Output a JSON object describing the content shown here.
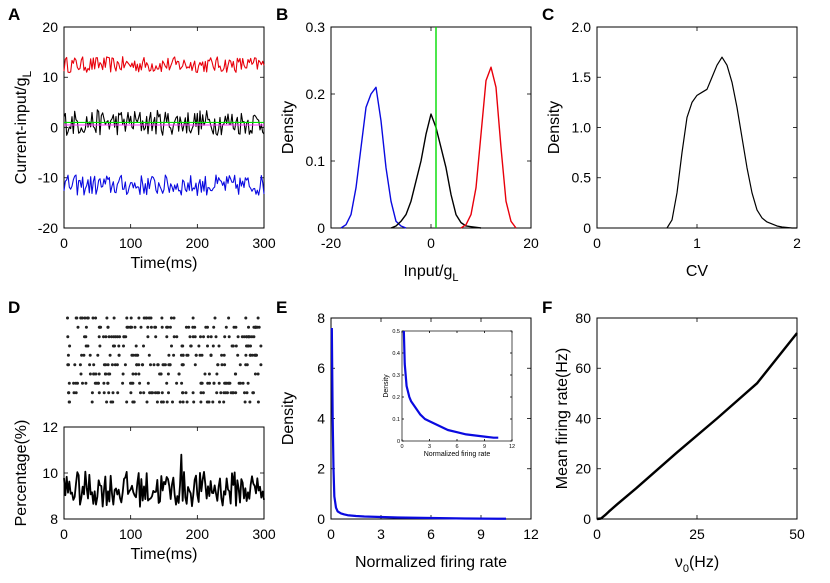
{
  "panel_labels": [
    "A",
    "B",
    "C",
    "D",
    "E",
    "F"
  ],
  "chart_data": [
    {
      "id": "A",
      "type": "line",
      "title": "",
      "xlabel": "Time(ms)",
      "ylabel": "Current-input/g",
      "ylabel_sub": "L",
      "xlim": [
        0,
        300
      ],
      "ylim": [
        -20,
        20
      ],
      "xticks": [
        "0",
        "100",
        "200",
        "300"
      ],
      "yticks": [
        "20",
        "10",
        "0",
        "-10",
        "-20"
      ],
      "xtick_values": [
        0,
        100,
        200,
        300
      ],
      "ytick_values": [
        20,
        10,
        0,
        -10,
        -20
      ],
      "series": [
        {
          "name": "high",
          "color": "#e8000b",
          "mean": 12.5,
          "amp": 1.0
        },
        {
          "name": "mid",
          "color": "#000000",
          "mean": 1.0,
          "amp": 1.6
        },
        {
          "name": "low",
          "color": "#0a0ae0",
          "mean": -11.5,
          "amp": 1.3
        },
        {
          "name": "mean-green",
          "color": "#00dd00",
          "const": 1.0
        },
        {
          "name": "mean-magenta",
          "color": "#ff33ff",
          "const": 0.5
        }
      ]
    },
    {
      "id": "B",
      "type": "line",
      "xlabel": "Input/g",
      "xlabel_sub": "L",
      "ylabel": "Density",
      "xlim": [
        -20,
        20
      ],
      "ylim": [
        0,
        0.3
      ],
      "xticks": [
        "-20",
        "0",
        "20"
      ],
      "yticks": [
        "0.3",
        "0.2",
        "0.1",
        "0"
      ],
      "xtick_values": [
        -20,
        0,
        20
      ],
      "ytick_values": [
        0.3,
        0.2,
        0.1,
        0
      ],
      "series": [
        {
          "name": "blue",
          "color": "#0a0ae0",
          "x": [
            -18,
            -17,
            -16,
            -15,
            -14,
            -13,
            -12,
            -11,
            -10,
            -9,
            -8,
            -7,
            -6,
            -5
          ],
          "y": [
            0,
            0.005,
            0.02,
            0.06,
            0.12,
            0.18,
            0.2,
            0.21,
            0.16,
            0.09,
            0.04,
            0.01,
            0.003,
            0
          ]
        },
        {
          "name": "black",
          "color": "#000000",
          "x": [
            -8,
            -7,
            -6,
            -5,
            -4,
            -3,
            -2,
            -1,
            0,
            1,
            2,
            3,
            4,
            5,
            6,
            7,
            8,
            9,
            10
          ],
          "y": [
            0,
            0.003,
            0.01,
            0.02,
            0.04,
            0.07,
            0.1,
            0.14,
            0.17,
            0.15,
            0.12,
            0.09,
            0.05,
            0.02,
            0.008,
            0.003,
            0.002,
            0.001,
            0
          ]
        },
        {
          "name": "red",
          "color": "#e8000b",
          "x": [
            6,
            7,
            8,
            9,
            10,
            11,
            12,
            13,
            14,
            15,
            16,
            17
          ],
          "y": [
            0,
            0.005,
            0.02,
            0.06,
            0.14,
            0.22,
            0.24,
            0.21,
            0.12,
            0.04,
            0.01,
            0
          ]
        },
        {
          "name": "threshold",
          "color": "#00dd00",
          "x": [
            1,
            1
          ],
          "y": [
            0,
            0.3
          ]
        }
      ]
    },
    {
      "id": "C",
      "type": "line",
      "xlabel": "CV",
      "ylabel": "Density",
      "xlim": [
        0,
        2
      ],
      "ylim": [
        0,
        2.0
      ],
      "xticks": [
        "0",
        "1",
        "2"
      ],
      "yticks": [
        "2.0",
        "1.5",
        "1.0",
        "0.5",
        "0"
      ],
      "xtick_values": [
        0,
        1,
        2
      ],
      "ytick_values": [
        2.0,
        1.5,
        1.0,
        0.5,
        0
      ],
      "series": [
        {
          "name": "cv",
          "color": "#000000",
          "x": [
            0.7,
            0.75,
            0.8,
            0.85,
            0.9,
            0.95,
            1.0,
            1.05,
            1.1,
            1.15,
            1.2,
            1.25,
            1.3,
            1.35,
            1.4,
            1.45,
            1.5,
            1.55,
            1.6,
            1.65,
            1.7,
            1.75,
            1.8,
            1.85,
            1.9,
            1.95,
            2.0
          ],
          "y": [
            0,
            0.08,
            0.35,
            0.75,
            1.1,
            1.25,
            1.32,
            1.35,
            1.38,
            1.5,
            1.62,
            1.7,
            1.62,
            1.45,
            1.2,
            0.9,
            0.6,
            0.35,
            0.18,
            0.1,
            0.06,
            0.04,
            0.02,
            0.01,
            0.005,
            0,
            0
          ]
        }
      ]
    },
    {
      "id": "D-raster",
      "type": "scatter",
      "xlim": [
        0,
        300
      ],
      "rows": 10,
      "points_per_row": 40
    },
    {
      "id": "D",
      "type": "line",
      "xlabel": "Time(ms)",
      "ylabel": "Percentage(%)",
      "xlim": [
        0,
        300
      ],
      "ylim": [
        8,
        12
      ],
      "xticks": [
        "0",
        "100",
        "200",
        "300"
      ],
      "yticks": [
        "12",
        "10",
        "8"
      ],
      "xtick_values": [
        0,
        100,
        200,
        300
      ],
      "ytick_values": [
        12,
        10,
        8
      ],
      "series": [
        {
          "name": "percentage",
          "color": "#000000",
          "mean": 9.3,
          "amp": 0.55
        }
      ]
    },
    {
      "id": "E",
      "type": "line",
      "xlabel": "Normalized firing rate",
      "ylabel": "Density",
      "xlim": [
        0,
        12
      ],
      "ylim": [
        0,
        8
      ],
      "xticks": [
        "0",
        "3",
        "6",
        "9",
        "12"
      ],
      "yticks": [
        "8",
        "6",
        "4",
        "2",
        "0"
      ],
      "xtick_values": [
        0,
        3,
        6,
        9,
        12
      ],
      "ytick_values": [
        8,
        6,
        4,
        2,
        0
      ],
      "series": [
        {
          "name": "density",
          "color": "#0a0ae0",
          "x": [
            0.05,
            0.1,
            0.15,
            0.2,
            0.3,
            0.4,
            0.6,
            0.8,
            1.0,
            1.5,
            2,
            3,
            4,
            5,
            6,
            7,
            8,
            9,
            10,
            10.5
          ],
          "y": [
            7.6,
            4.0,
            2.0,
            0.9,
            0.45,
            0.3,
            0.22,
            0.18,
            0.15,
            0.12,
            0.1,
            0.08,
            0.06,
            0.05,
            0.04,
            0.03,
            0.02,
            0.015,
            0.01,
            0.01
          ]
        }
      ],
      "inset": {
        "xlabel": "Normalized firing rate",
        "ylabel": "Density",
        "xlim": [
          0,
          12
        ],
        "ylim": [
          0,
          0.5
        ],
        "xticks": [
          "0",
          "3",
          "6",
          "9",
          "12"
        ],
        "yticks": [
          "0.5",
          "0.4",
          "0.3",
          "0.2",
          "0.1",
          "0"
        ],
        "xtick_values": [
          0,
          3,
          6,
          9,
          12
        ],
        "ytick_values": [
          0.5,
          0.4,
          0.3,
          0.2,
          0.1,
          0
        ],
        "x": [
          0.2,
          0.3,
          0.5,
          0.8,
          1,
          1.5,
          2,
          2.5,
          3,
          4,
          5,
          6,
          7,
          8,
          9,
          10,
          10.5
        ],
        "y": [
          0.5,
          0.35,
          0.25,
          0.2,
          0.18,
          0.15,
          0.12,
          0.1,
          0.09,
          0.07,
          0.05,
          0.04,
          0.03,
          0.025,
          0.02,
          0.015,
          0.015
        ]
      }
    },
    {
      "id": "F",
      "type": "line",
      "xlabel": "ν",
      "xlabel_sub": "0",
      "xlabel_tail": "(Hz)",
      "ylabel": "Mean firing rate(Hz)",
      "xlim": [
        0,
        50
      ],
      "ylim": [
        0,
        80
      ],
      "xticks": [
        "0",
        "25",
        "50"
      ],
      "yticks": [
        "80",
        "60",
        "40",
        "20",
        "0"
      ],
      "xtick_values": [
        0,
        25,
        50
      ],
      "ytick_values": [
        80,
        60,
        40,
        20,
        0
      ],
      "series": [
        {
          "name": "rate",
          "color": "#000000",
          "x": [
            0,
            1,
            2,
            3,
            5,
            10,
            20,
            30,
            40,
            50
          ],
          "y": [
            0,
            0.2,
            1.5,
            3,
            5.8,
            12.5,
            26.5,
            40,
            54,
            74
          ]
        }
      ]
    }
  ]
}
